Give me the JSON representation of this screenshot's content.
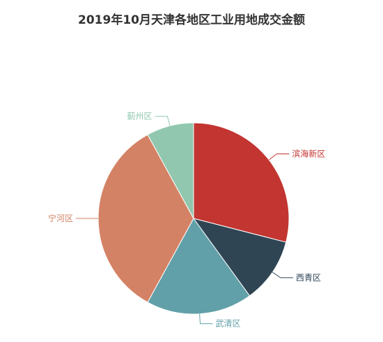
{
  "chart_data": {
    "type": "pie",
    "title": "2019年10月天津各地区工业用地成交金额",
    "start_angle_deg": 90,
    "direction": "clockwise",
    "slices": [
      {
        "name": "滨海新区",
        "value": 29,
        "color": "#c23531"
      },
      {
        "name": "西青区",
        "value": 11,
        "color": "#2f4554"
      },
      {
        "name": "武清区",
        "value": 18,
        "color": "#61a0a8"
      },
      {
        "name": "宁河区",
        "value": 34,
        "color": "#d48265"
      },
      {
        "name": "蓟州区",
        "value": 8,
        "color": "#91c7ae"
      }
    ]
  }
}
